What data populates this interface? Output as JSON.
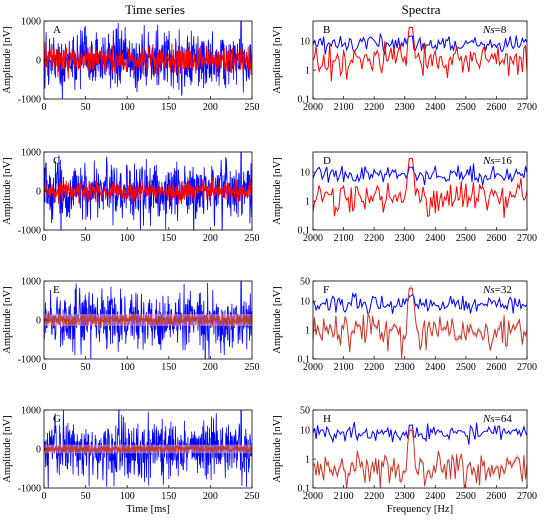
{
  "figure": {
    "left_title": "Time series",
    "right_title": "Spectra"
  },
  "colors": {
    "blue": "#0000ff",
    "red": "#ff0000",
    "dark_red": "#c0392b",
    "pink_band": "#f4a3a8"
  },
  "chart_data": [
    {
      "panel": "A",
      "type": "line",
      "kind": "time",
      "ylabel": "Amplitude [nV]",
      "xlabel": "",
      "xlim": [
        0,
        250
      ],
      "ylim": [
        -1000,
        1000
      ],
      "xticks": [
        "0",
        "50",
        "100",
        "150",
        "200",
        "250"
      ],
      "yticks": [
        "-1000",
        "0",
        "1000"
      ],
      "series": [
        {
          "color": "blue",
          "amplitude_nv": 350,
          "spike_at_ms": 237,
          "spike_nv": 1000
        },
        {
          "color": "red",
          "amplitude_nv": 180
        }
      ]
    },
    {
      "panel": "B",
      "type": "line",
      "kind": "spectrum",
      "ns_prefix": "Ns",
      "ns_value": "=8",
      "ylabel": "Amplitude [nV]",
      "xlabel": "",
      "xlim": [
        2000,
        2700
      ],
      "ylim": [
        0.1,
        50
      ],
      "yscale": "log",
      "xticks": [
        "2000",
        "2100",
        "2200",
        "2300",
        "2400",
        "2500",
        "2600",
        "2700"
      ],
      "yticks": [
        "0.1",
        "1",
        "10"
      ],
      "signal_peak_hz": 2320,
      "series": [
        {
          "color": "blue",
          "level_nv": 8,
          "peak_nv": 15
        },
        {
          "color": "red",
          "level_nv": 2.5,
          "peak_nv": 30
        }
      ]
    },
    {
      "panel": "C",
      "type": "line",
      "kind": "time",
      "ylabel": "Amplitude [nV]",
      "xlabel": "",
      "xlim": [
        0,
        250
      ],
      "ylim": [
        -1000,
        1000
      ],
      "xticks": [
        "0",
        "50",
        "100",
        "150",
        "200",
        "250"
      ],
      "yticks": [
        "-1000",
        "0",
        "1000"
      ],
      "series": [
        {
          "color": "blue",
          "amplitude_nv": 350,
          "spike_at_ms": 237,
          "spike_nv": 1000
        },
        {
          "color": "red",
          "amplitude_nv": 120
        }
      ]
    },
    {
      "panel": "D",
      "type": "line",
      "kind": "spectrum",
      "ns_prefix": "Ns",
      "ns_value": "=16",
      "ylabel": "Amplitude [nV]",
      "xlabel": "",
      "xlim": [
        2000,
        2700
      ],
      "ylim": [
        0.1,
        50
      ],
      "yscale": "log",
      "xticks": [
        "2000",
        "2100",
        "2200",
        "2300",
        "2400",
        "2500",
        "2600",
        "2700"
      ],
      "yticks": [
        "0.1",
        "1",
        "10"
      ],
      "signal_peak_hz": 2320,
      "series": [
        {
          "color": "blue",
          "level_nv": 8,
          "peak_nv": 15
        },
        {
          "color": "red",
          "level_nv": 1.6,
          "peak_nv": 30
        }
      ]
    },
    {
      "panel": "E",
      "type": "line",
      "kind": "time",
      "ylabel": "Amplitude [nV]",
      "xlabel": "",
      "xlim": [
        0,
        250
      ],
      "ylim": [
        -1000,
        1000
      ],
      "xticks": [
        "0",
        "50",
        "100",
        "150",
        "200",
        "250"
      ],
      "yticks": [
        "-1000",
        "0",
        "1000"
      ],
      "series": [
        {
          "color": "blue",
          "amplitude_nv": 350,
          "spike_at_ms": 237,
          "spike_nv": 1000
        },
        {
          "color": "dark_red",
          "amplitude_nv": 70,
          "band": true
        }
      ]
    },
    {
      "panel": "F",
      "type": "line",
      "kind": "spectrum",
      "ns_prefix": "Ns",
      "ns_value": "=32",
      "ylabel": "Amplitude [nV]",
      "xlabel": "",
      "xlim": [
        2000,
        2700
      ],
      "ylim": [
        0.1,
        50
      ],
      "yscale": "log",
      "xticks": [
        "2000",
        "2100",
        "2200",
        "2300",
        "2400",
        "2500",
        "2600",
        "2700"
      ],
      "yticks": [
        "0.1",
        "1",
        "10",
        "50"
      ],
      "signal_peak_hz": 2320,
      "series": [
        {
          "color": "blue",
          "level_nv": 8,
          "peak_nv": 15
        },
        {
          "color": "dark_red",
          "level_nv": 1.0,
          "peak_nv": 28,
          "band": true
        }
      ]
    },
    {
      "panel": "G",
      "type": "line",
      "kind": "time",
      "ylabel": "Amplitude [nV]",
      "xlabel": "Time [ms]",
      "xlim": [
        0,
        250
      ],
      "ylim": [
        -1000,
        1000
      ],
      "xticks": [
        "0",
        "50",
        "100",
        "150",
        "200",
        "250"
      ],
      "yticks": [
        "-1000",
        "0",
        "1000"
      ],
      "series": [
        {
          "color": "blue",
          "amplitude_nv": 350,
          "spike_at_ms": 237,
          "spike_nv": 1000
        },
        {
          "color": "dark_red",
          "amplitude_nv": 50,
          "band": true
        }
      ]
    },
    {
      "panel": "H",
      "type": "line",
      "kind": "spectrum",
      "ns_prefix": "Ns",
      "ns_value": "=64",
      "ylabel": "Amplitude [nV]",
      "xlabel": "Frequency [Hz]",
      "xlim": [
        2000,
        2700
      ],
      "ylim": [
        0.1,
        50
      ],
      "yscale": "log",
      "xticks": [
        "2000",
        "2100",
        "2200",
        "2300",
        "2400",
        "2500",
        "2600",
        "2700"
      ],
      "yticks": [
        "0.1",
        "1",
        "10",
        "50"
      ],
      "signal_peak_hz": 2320,
      "series": [
        {
          "color": "blue",
          "level_nv": 8,
          "peak_nv": 15
        },
        {
          "color": "dark_red",
          "level_nv": 0.5,
          "peak_nv": 10,
          "band": true
        }
      ]
    }
  ]
}
